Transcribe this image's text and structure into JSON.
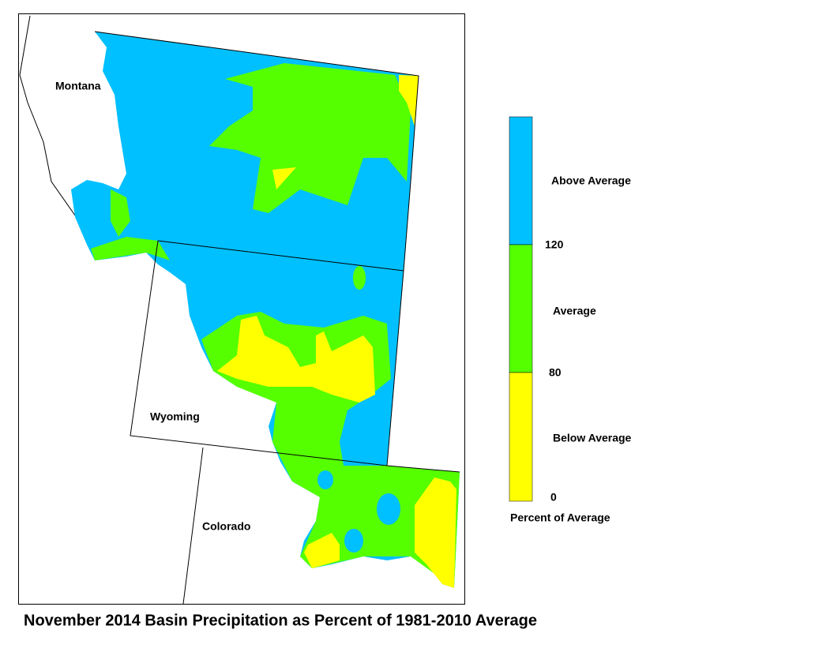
{
  "title": "November 2014 Basin Precipitation as Percent of 1981-2010 Average",
  "map": {
    "labels": [
      "Montana",
      "Wyoming",
      "Colorado"
    ]
  },
  "legend": {
    "title": "Percent of Average",
    "classes": [
      {
        "label": "Above Average",
        "color": "#00c0ff"
      },
      {
        "label": "Average",
        "color": "#55ff00"
      },
      {
        "label": "Below Average",
        "color": "#ffff00"
      }
    ],
    "ticks": [
      120,
      80,
      0
    ]
  }
}
